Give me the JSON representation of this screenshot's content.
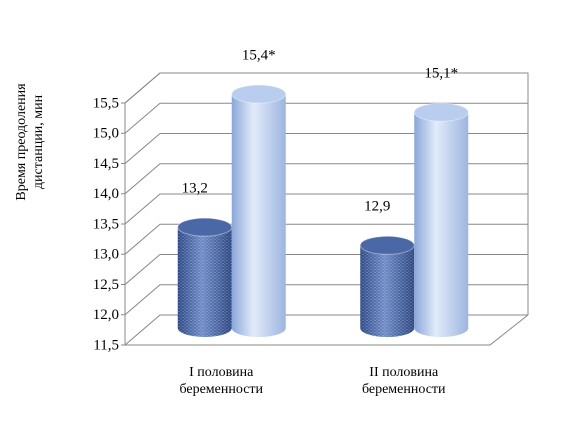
{
  "chart_data": {
    "type": "bar3d",
    "y_label": "Время преодоления дистанции, мин",
    "categories": [
      "I половина беременности",
      "II половина беременности"
    ],
    "series": [
      {
        "color": "#4a67a6",
        "values": [
          13.2,
          12.9
        ],
        "value_labels": [
          "13,2",
          "12,9"
        ]
      },
      {
        "color": "#b9cdee",
        "values": [
          15.4,
          15.1
        ],
        "value_labels": [
          "15,4*",
          "15,1*"
        ]
      }
    ],
    "ylim": [
      11.5,
      15.5
    ],
    "yticks": [
      {
        "value": 11.5,
        "label": "11,5"
      },
      {
        "value": 12,
        "label": "12,0"
      },
      {
        "value": 12.5,
        "label": "12,5"
      },
      {
        "value": 13,
        "label": "13,0"
      },
      {
        "value": 13.5,
        "label": "13,5"
      },
      {
        "value": 14,
        "label": "14,0"
      },
      {
        "value": 14.5,
        "label": "14,5"
      },
      {
        "value": 15,
        "label": "15,0"
      },
      {
        "value": 15.5,
        "label": "15,5"
      }
    ],
    "grid": true
  }
}
